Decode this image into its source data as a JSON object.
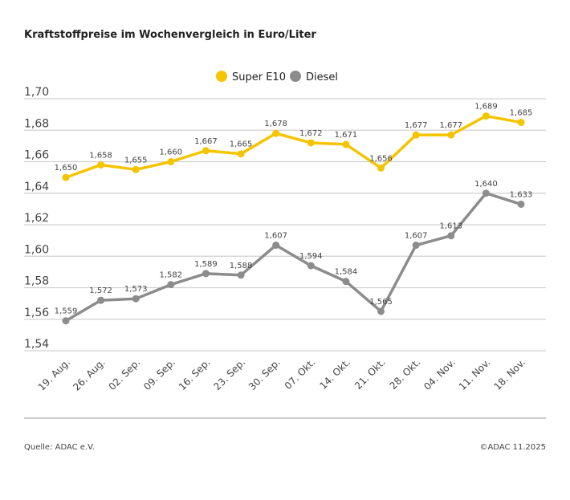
{
  "chart_data": {
    "type": "line",
    "title": "Kraftstoffpreise im Wochenvergleich in Euro/Liter",
    "categories": [
      "19. Aug.",
      "26. Aug.",
      "02. Sep.",
      "09. Sep.",
      "16. Sep.",
      "23. Sep.",
      "30. Sep.",
      "07. Okt.",
      "14. Okt.",
      "21. Okt.",
      "28. Okt.",
      "04. Nov.",
      "11. Nov.",
      "18. Nov."
    ],
    "series": [
      {
        "name": "Super E10",
        "color": "#f5c400",
        "values": [
          1.65,
          1.658,
          1.655,
          1.66,
          1.667,
          1.665,
          1.678,
          1.672,
          1.671,
          1.656,
          1.677,
          1.677,
          1.689,
          1.685
        ]
      },
      {
        "name": "Diesel",
        "color": "#8c8c8c",
        "values": [
          1.559,
          1.572,
          1.573,
          1.582,
          1.589,
          1.588,
          1.607,
          1.594,
          1.584,
          1.565,
          1.607,
          1.613,
          1.64,
          1.633
        ]
      }
    ],
    "ylim": [
      1.54,
      1.7
    ],
    "yticks": [
      "1,70",
      "1,68",
      "1,66",
      "1,64",
      "1,62",
      "1,60",
      "1,58",
      "1,56",
      "1,54"
    ],
    "grid": true,
    "legend": "top-center"
  },
  "footer": {
    "source": "Quelle: ADAC e.V.",
    "copyright": "©ADAC 11.2025"
  }
}
